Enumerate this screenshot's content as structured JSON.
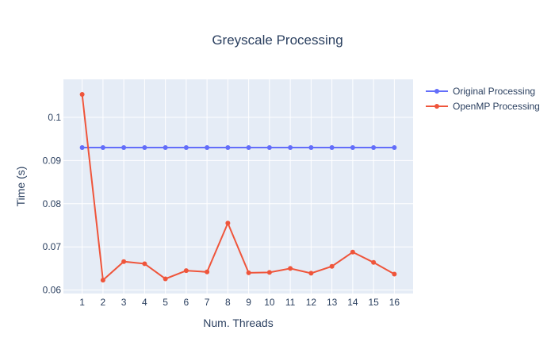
{
  "chart_data": {
    "type": "line",
    "title": "Greyscale Processing",
    "xlabel": "Num. Threads",
    "ylabel": "Time (s)",
    "x": [
      1,
      2,
      3,
      4,
      5,
      6,
      7,
      8,
      9,
      10,
      11,
      12,
      13,
      14,
      15,
      16
    ],
    "xlim": [
      0.1,
      16.9
    ],
    "ylim": [
      0.0592,
      0.1088
    ],
    "yticks": [
      0.06,
      0.07,
      0.08,
      0.09,
      0.1
    ],
    "ytick_labels": [
      "0.06",
      "0.07",
      "0.08",
      "0.09",
      "0.1"
    ],
    "grid": true,
    "legend": "top-right",
    "series": [
      {
        "name": "Original Processing",
        "color": "#636efa",
        "values": [
          0.093,
          0.093,
          0.093,
          0.093,
          0.093,
          0.093,
          0.093,
          0.093,
          0.093,
          0.093,
          0.093,
          0.093,
          0.093,
          0.093,
          0.093,
          0.093
        ]
      },
      {
        "name": "OpenMP Processing",
        "color": "#ef553b",
        "values": [
          0.1053,
          0.0623,
          0.0666,
          0.0661,
          0.0626,
          0.0645,
          0.0642,
          0.0755,
          0.064,
          0.0641,
          0.065,
          0.0639,
          0.0655,
          0.0688,
          0.0664,
          0.0637
        ]
      }
    ]
  }
}
